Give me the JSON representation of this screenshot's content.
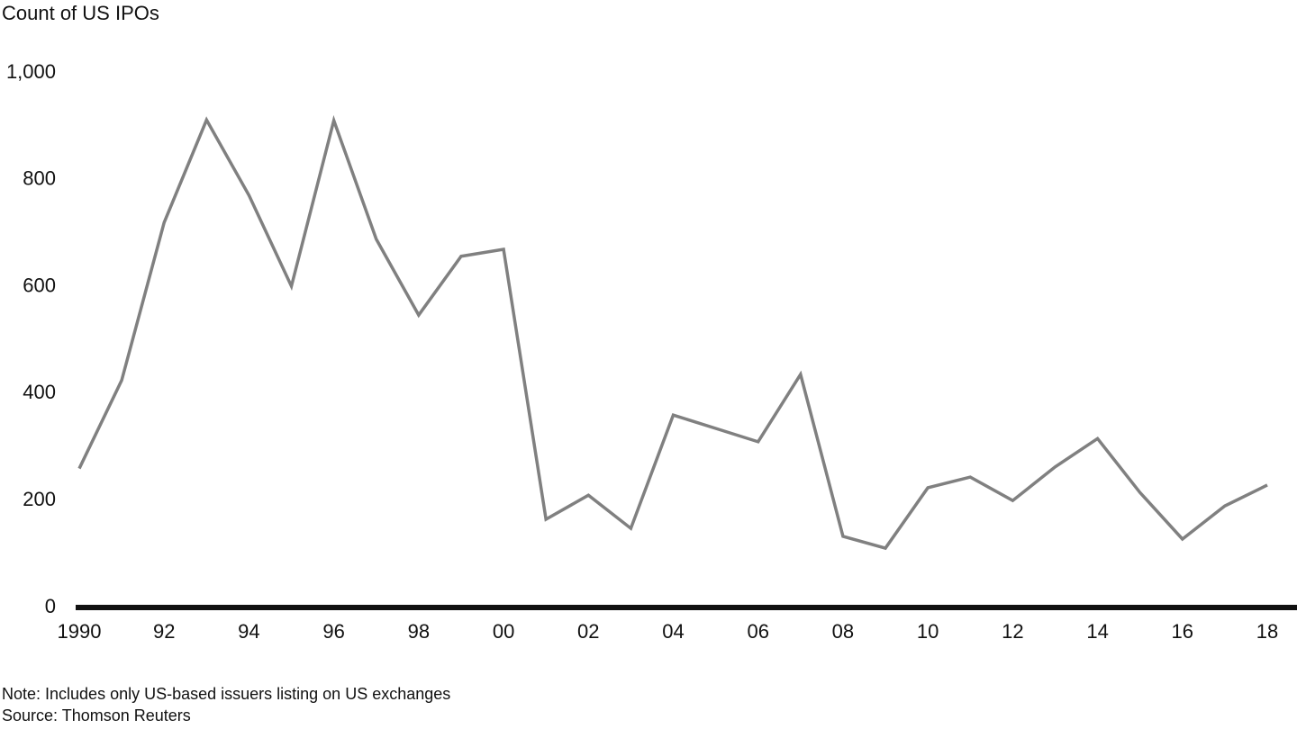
{
  "chart_data": {
    "type": "line",
    "y_label": "Count of US IPOs",
    "categories": [
      "1990",
      null,
      "92",
      null,
      "94",
      null,
      "96",
      null,
      "98",
      null,
      "00",
      null,
      "02",
      null,
      "04",
      null,
      "06",
      null,
      "08",
      null,
      "10",
      null,
      "12",
      null,
      "14",
      null,
      "16",
      null,
      "18"
    ],
    "values": [
      260,
      425,
      720,
      912,
      771,
      601,
      911,
      689,
      547,
      657,
      670,
      165,
      210,
      148,
      360,
      335,
      310,
      436,
      133,
      111,
      224,
      244,
      200,
      263,
      316,
      215,
      128,
      190,
      229
    ],
    "color": "#808080",
    "ylim": [
      0,
      1000
    ],
    "yticks": [
      0,
      200,
      400,
      600,
      800,
      {
        "value": 1000,
        "label": "1,000"
      }
    ],
    "grid": false,
    "note": "Note: Includes only US-based issuers listing on US exchanges",
    "source": "Source: Thomson Reuters"
  }
}
